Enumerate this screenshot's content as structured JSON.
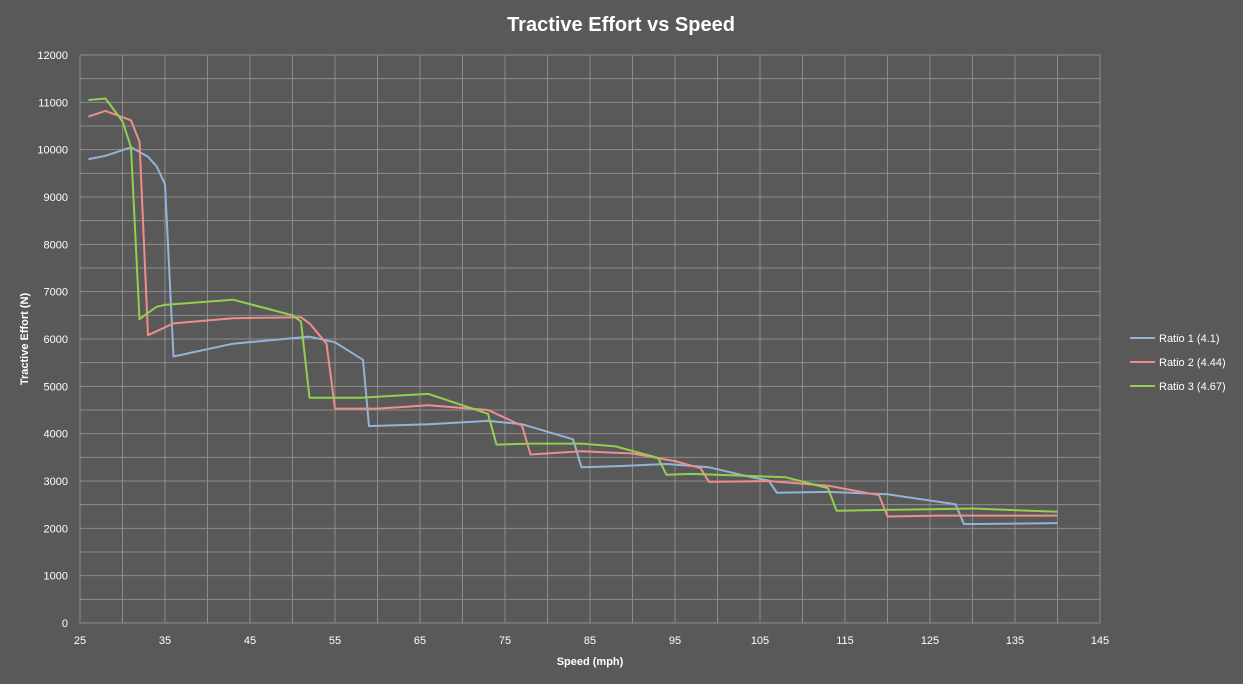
{
  "chart_data": {
    "type": "line",
    "title": "Tractive Effort vs Speed",
    "xlabel": "Speed (mph)",
    "ylabel": "Tractive Effort (N)",
    "xlim": [
      25,
      145
    ],
    "ylim": [
      0,
      12000
    ],
    "x_ticks": [
      25,
      35,
      45,
      55,
      65,
      75,
      85,
      95,
      105,
      115,
      125,
      135,
      145
    ],
    "y_ticks": [
      0,
      1000,
      2000,
      3000,
      4000,
      5000,
      6000,
      7000,
      8000,
      9000,
      10000,
      11000,
      12000
    ],
    "grid": true,
    "legend_position": "right",
    "series": [
      {
        "name": "Ratio 1 (4.1)",
        "color": "#95b3d7",
        "points": [
          [
            26,
            9800
          ],
          [
            28,
            9870
          ],
          [
            31,
            10050
          ],
          [
            33,
            9850
          ],
          [
            34,
            9650
          ],
          [
            35,
            9270
          ],
          [
            36,
            5630
          ],
          [
            43,
            5900
          ],
          [
            52,
            6050
          ],
          [
            55,
            5930
          ],
          [
            58.3,
            5560
          ],
          [
            59,
            4160
          ],
          [
            66,
            4200
          ],
          [
            73,
            4270
          ],
          [
            77,
            4200
          ],
          [
            83,
            3880
          ],
          [
            84,
            3290
          ],
          [
            88,
            3310
          ],
          [
            94,
            3360
          ],
          [
            99,
            3290
          ],
          [
            104,
            3080
          ],
          [
            106,
            3010
          ],
          [
            107,
            2750
          ],
          [
            113,
            2770
          ],
          [
            120,
            2720
          ],
          [
            128,
            2510
          ],
          [
            129,
            2090
          ],
          [
            135,
            2100
          ],
          [
            140,
            2110
          ]
        ]
      },
      {
        "name": "Ratio 2 (4.44)",
        "color": "#f08c8c",
        "points": [
          [
            26,
            10700
          ],
          [
            28,
            10820
          ],
          [
            31,
            10620
          ],
          [
            32,
            10170
          ],
          [
            33,
            6080
          ],
          [
            36,
            6330
          ],
          [
            43,
            6440
          ],
          [
            51,
            6460
          ],
          [
            52,
            6330
          ],
          [
            54,
            5900
          ],
          [
            55,
            4530
          ],
          [
            60,
            4530
          ],
          [
            66,
            4600
          ],
          [
            73,
            4500
          ],
          [
            77,
            4170
          ],
          [
            78,
            3560
          ],
          [
            84,
            3630
          ],
          [
            90,
            3580
          ],
          [
            95,
            3420
          ],
          [
            98,
            3270
          ],
          [
            99,
            2980
          ],
          [
            106,
            3000
          ],
          [
            113,
            2900
          ],
          [
            119,
            2700
          ],
          [
            120,
            2250
          ],
          [
            126,
            2270
          ],
          [
            140,
            2270
          ]
        ]
      },
      {
        "name": "Ratio 3 (4.67)",
        "color": "#92d050",
        "points": [
          [
            26,
            11050
          ],
          [
            28,
            11080
          ],
          [
            30,
            10600
          ],
          [
            31,
            10050
          ],
          [
            32,
            6420
          ],
          [
            34,
            6680
          ],
          [
            35,
            6720
          ],
          [
            43,
            6830
          ],
          [
            50,
            6500
          ],
          [
            51,
            6370
          ],
          [
            52,
            4760
          ],
          [
            58,
            4760
          ],
          [
            66,
            4840
          ],
          [
            73,
            4420
          ],
          [
            74,
            3770
          ],
          [
            78,
            3790
          ],
          [
            84,
            3790
          ],
          [
            88,
            3730
          ],
          [
            93,
            3490
          ],
          [
            94,
            3130
          ],
          [
            97,
            3150
          ],
          [
            108,
            3080
          ],
          [
            113,
            2850
          ],
          [
            114,
            2370
          ],
          [
            120,
            2390
          ],
          [
            130,
            2420
          ],
          [
            140,
            2350
          ]
        ]
      }
    ]
  }
}
